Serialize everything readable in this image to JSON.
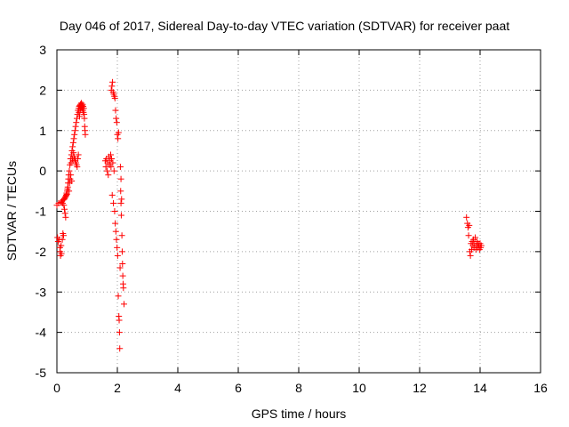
{
  "chart_data": {
    "type": "scatter",
    "title": "Day 046 of 2017, Sidereal Day-to-day VTEC variation (SDTVAR) for receiver paat",
    "xlabel": "GPS time / hours",
    "ylabel": "SDTVAR / TECUs",
    "xlim": [
      0,
      16
    ],
    "ylim": [
      -5,
      3
    ],
    "xticks": [
      0,
      2,
      4,
      6,
      8,
      10,
      12,
      14,
      16
    ],
    "yticks": [
      -5,
      -4,
      -3,
      -2,
      -1,
      0,
      1,
      2,
      3
    ],
    "grid": true,
    "marker": "+",
    "color": "#ff0000",
    "series": [
      {
        "name": "SDTVAR",
        "points": [
          [
            0.0,
            -0.85
          ],
          [
            0.02,
            -1.65
          ],
          [
            0.04,
            -1.75
          ],
          [
            0.06,
            -0.8
          ],
          [
            0.08,
            -1.7
          ],
          [
            0.1,
            -1.9
          ],
          [
            0.11,
            -2.0
          ],
          [
            0.12,
            -2.1
          ],
          [
            0.13,
            -0.78
          ],
          [
            0.14,
            -1.85
          ],
          [
            0.15,
            -2.05
          ],
          [
            0.16,
            -0.75
          ],
          [
            0.18,
            -1.7
          ],
          [
            0.19,
            -0.8
          ],
          [
            0.2,
            -1.55
          ],
          [
            0.21,
            -0.72
          ],
          [
            0.22,
            -1.6
          ],
          [
            0.23,
            -0.85
          ],
          [
            0.24,
            -0.7
          ],
          [
            0.25,
            -0.95
          ],
          [
            0.26,
            -0.68
          ],
          [
            0.27,
            -1.05
          ],
          [
            0.28,
            -0.65
          ],
          [
            0.29,
            -1.15
          ],
          [
            0.3,
            -0.62
          ],
          [
            0.31,
            -0.6
          ],
          [
            0.32,
            -0.55
          ],
          [
            0.33,
            -0.58
          ],
          [
            0.34,
            -0.5
          ],
          [
            0.35,
            -0.45
          ],
          [
            0.36,
            -0.4
          ],
          [
            0.37,
            -0.3
          ],
          [
            0.38,
            -0.2
          ],
          [
            0.39,
            -0.1
          ],
          [
            0.4,
            -0.5
          ],
          [
            0.41,
            0.0
          ],
          [
            0.42,
            -0.3
          ],
          [
            0.43,
            0.15
          ],
          [
            0.44,
            -0.2
          ],
          [
            0.45,
            0.3
          ],
          [
            0.46,
            -0.1
          ],
          [
            0.47,
            0.2
          ],
          [
            0.48,
            0.4
          ],
          [
            0.49,
            -0.25
          ],
          [
            0.5,
            0.5
          ],
          [
            0.51,
            0.3
          ],
          [
            0.52,
            0.6
          ],
          [
            0.53,
            0.25
          ],
          [
            0.54,
            0.7
          ],
          [
            0.55,
            0.45
          ],
          [
            0.56,
            0.8
          ],
          [
            0.57,
            0.35
          ],
          [
            0.58,
            0.9
          ],
          [
            0.59,
            0.3
          ],
          [
            0.6,
            1.0
          ],
          [
            0.61,
            0.25
          ],
          [
            0.62,
            1.1
          ],
          [
            0.63,
            0.2
          ],
          [
            0.64,
            1.2
          ],
          [
            0.65,
            0.15
          ],
          [
            0.66,
            1.3
          ],
          [
            0.67,
            0.1
          ],
          [
            0.68,
            1.4
          ],
          [
            0.69,
            0.3
          ],
          [
            0.7,
            1.5
          ],
          [
            0.71,
            0.4
          ],
          [
            0.72,
            1.55
          ],
          [
            0.73,
            1.45
          ],
          [
            0.74,
            1.6
          ],
          [
            0.75,
            1.35
          ],
          [
            0.76,
            1.62
          ],
          [
            0.77,
            1.5
          ],
          [
            0.78,
            1.65
          ],
          [
            0.79,
            1.55
          ],
          [
            0.8,
            1.6
          ],
          [
            0.81,
            1.68
          ],
          [
            0.82,
            1.58
          ],
          [
            0.83,
            1.62
          ],
          [
            0.84,
            1.55
          ],
          [
            0.85,
            1.65
          ],
          [
            0.86,
            1.5
          ],
          [
            0.87,
            1.6
          ],
          [
            0.88,
            1.45
          ],
          [
            0.89,
            1.55
          ],
          [
            0.9,
            1.4
          ],
          [
            0.91,
            1.3
          ],
          [
            0.92,
            1.1
          ],
          [
            0.93,
            1.0
          ],
          [
            0.94,
            0.9
          ],
          [
            1.6,
            0.25
          ],
          [
            1.62,
            0.1
          ],
          [
            1.64,
            0.3
          ],
          [
            1.66,
            0.0
          ],
          [
            1.68,
            0.2
          ],
          [
            1.7,
            -0.1
          ],
          [
            1.72,
            0.35
          ],
          [
            1.74,
            0.15
          ],
          [
            1.76,
            0.25
          ],
          [
            1.78,
            0.4
          ],
          [
            1.79,
            0.1
          ],
          [
            1.8,
            2.0
          ],
          [
            1.81,
            0.3
          ],
          [
            1.82,
            2.1
          ],
          [
            1.83,
            -0.6
          ],
          [
            1.84,
            2.2
          ],
          [
            1.85,
            0.2
          ],
          [
            1.86,
            1.95
          ],
          [
            1.87,
            -0.8
          ],
          [
            1.88,
            1.9
          ],
          [
            1.89,
            0.0
          ],
          [
            1.9,
            1.85
          ],
          [
            1.91,
            -1.0
          ],
          [
            1.92,
            1.8
          ],
          [
            1.93,
            -1.3
          ],
          [
            1.94,
            1.5
          ],
          [
            1.95,
            -1.5
          ],
          [
            1.96,
            1.3
          ],
          [
            1.97,
            -1.7
          ],
          [
            1.98,
            1.2
          ],
          [
            1.99,
            -1.9
          ],
          [
            2.0,
            0.9
          ],
          [
            2.01,
            -2.1
          ],
          [
            2.02,
            0.8
          ],
          [
            2.03,
            -3.1
          ],
          [
            2.04,
            0.95
          ],
          [
            2.05,
            -3.6
          ],
          [
            2.06,
            -3.7
          ],
          [
            2.07,
            -4.0
          ],
          [
            2.08,
            -4.4
          ],
          [
            2.09,
            -2.4
          ],
          [
            2.1,
            0.1
          ],
          [
            2.11,
            -0.5
          ],
          [
            2.12,
            -0.8
          ],
          [
            2.13,
            -1.1
          ],
          [
            2.14,
            -0.7
          ],
          [
            2.15,
            -1.6
          ],
          [
            2.16,
            -2.0
          ],
          [
            2.17,
            -2.3
          ],
          [
            2.18,
            -2.6
          ],
          [
            2.19,
            -2.8
          ],
          [
            2.2,
            -2.9
          ],
          [
            2.22,
            -3.3
          ],
          [
            2.12,
            -0.2
          ],
          [
            13.55,
            -1.15
          ],
          [
            13.58,
            -1.3
          ],
          [
            13.6,
            -1.4
          ],
          [
            13.62,
            -1.6
          ],
          [
            13.64,
            -1.35
          ],
          [
            13.66,
            -2.0
          ],
          [
            13.68,
            -2.1
          ],
          [
            13.7,
            -1.8
          ],
          [
            13.72,
            -1.95
          ],
          [
            13.74,
            -1.75
          ],
          [
            13.76,
            -1.85
          ],
          [
            13.78,
            -1.7
          ],
          [
            13.8,
            -1.9
          ],
          [
            13.82,
            -1.8
          ],
          [
            13.84,
            -1.65
          ],
          [
            13.86,
            -1.95
          ],
          [
            13.88,
            -1.85
          ],
          [
            13.9,
            -1.75
          ],
          [
            13.92,
            -1.9
          ],
          [
            13.94,
            -1.8
          ],
          [
            13.96,
            -1.85
          ],
          [
            13.98,
            -1.95
          ],
          [
            14.0,
            -1.8
          ],
          [
            14.02,
            -1.9
          ],
          [
            14.04,
            -1.85
          ]
        ]
      }
    ]
  }
}
